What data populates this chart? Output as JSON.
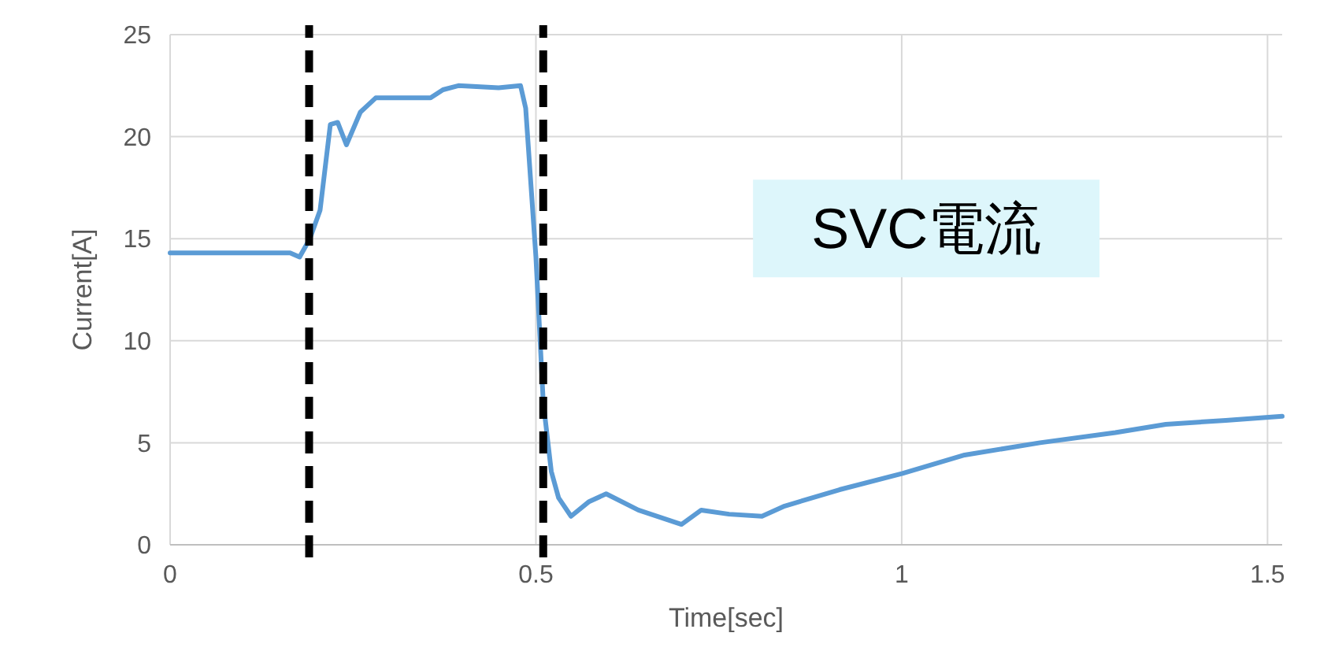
{
  "chart_data": {
    "type": "line",
    "xlabel": "Time[sec]",
    "ylabel": "Current[A]",
    "xlim": [
      0,
      1.52
    ],
    "xticks": [
      0,
      0.5,
      1,
      1.5
    ],
    "ylim": [
      0,
      25
    ],
    "yticks": [
      0,
      5,
      10,
      15,
      20,
      25
    ],
    "grid": true,
    "marker": "none",
    "line_style": "solid",
    "series": [
      {
        "color": "#5b9bd5",
        "x": [
          0,
          0.164,
          0.177,
          0.191,
          0.205,
          0.219,
          0.229,
          0.241,
          0.26,
          0.281,
          0.298,
          0.356,
          0.373,
          0.394,
          0.449,
          0.479,
          0.486,
          0.5,
          0.51,
          0.521,
          0.531,
          0.548,
          0.572,
          0.596,
          0.64,
          0.699,
          0.726,
          0.764,
          0.809,
          0.84,
          0.915,
          1.001,
          1.086,
          1.189,
          1.292,
          1.361,
          1.443,
          1.52
        ],
        "values": [
          14.3,
          14.3,
          14.1,
          15.0,
          16.4,
          20.6,
          20.7,
          19.6,
          21.2,
          21.9,
          21.9,
          21.9,
          22.3,
          22.5,
          22.4,
          22.5,
          21.4,
          14.1,
          7.0,
          3.6,
          2.3,
          1.4,
          2.1,
          2.5,
          1.7,
          1.0,
          1.7,
          1.5,
          1.4,
          1.9,
          2.7,
          3.5,
          4.4,
          5.0,
          5.5,
          5.9,
          6.1,
          6.3
        ]
      }
    ],
    "ref_lines": [
      {
        "axis": "x",
        "value": 0.19,
        "color": "#000000",
        "line_style": "dashed"
      },
      {
        "axis": "x",
        "value": 0.51,
        "color": "#000000",
        "line_style": "dashed"
      }
    ],
    "annotations": [
      "SVC電流"
    ]
  }
}
